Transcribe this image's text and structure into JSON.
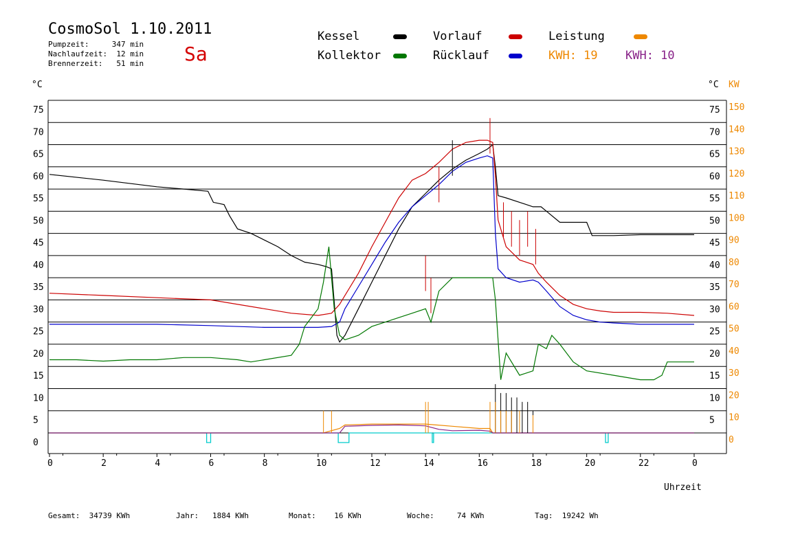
{
  "header": {
    "title": "CosmoSol 1.10.2011",
    "pumpzeit": "Pumpzeit:     347 min",
    "nachlaufzeit": "Nachlaufzeit:  12 min",
    "brennerzeit": "Brennerzeit:   51 min",
    "day": "Sa"
  },
  "legend": {
    "kessel": "Kessel",
    "kollektor": "Kollektor",
    "vorlauf": "Vorlauf",
    "ruecklauf": "Rücklauf",
    "leistung": "Leistung",
    "kwh1": "KWH: 19",
    "kwh2": "KWH: 10"
  },
  "axes": {
    "left_unit": "°C",
    "right_unit": "°C",
    "kw_unit": "KW",
    "xlabel": "Uhrzeit"
  },
  "footer": {
    "gesamt": "Gesamt:  34739 KWh",
    "jahr": "Jahr:   1884 KWh",
    "monat": "Monat:    16 KWh",
    "woche": "Woche:     74 KWh",
    "tag": "Tag:  19242 Wh"
  },
  "chart_data": {
    "type": "line",
    "x_ticks": [
      "0",
      "2",
      "4",
      "6",
      "8",
      "10",
      "12",
      "14",
      "16",
      "18",
      "20",
      "22",
      "0"
    ],
    "y_ticks_left": [
      "0",
      "5",
      "10",
      "15",
      "20",
      "25",
      "30",
      "35",
      "40",
      "45",
      "50",
      "55",
      "60",
      "65",
      "70",
      "75"
    ],
    "y_ticks_right": [
      "",
      "5",
      "10",
      "15",
      "20",
      "25",
      "30",
      "35",
      "40",
      "45",
      "50",
      "55",
      "60",
      "65",
      "70",
      "75"
    ],
    "y_ticks_kw": [
      "0",
      "10",
      "20",
      "30",
      "40",
      "50",
      "60",
      "70",
      "80",
      "90",
      "100",
      "110",
      "120",
      "130",
      "140",
      "150"
    ],
    "xlim": [
      0,
      24
    ],
    "ylim": [
      0,
      75
    ],
    "grid": true,
    "colors": {
      "kessel": "#000000",
      "kollektor": "#007700",
      "vorlauf": "#cc0000",
      "ruecklauf": "#0000cc",
      "leistung": "#ee8800",
      "kwh2": "#882288",
      "pump": "#00cccc"
    },
    "series": [
      {
        "name": "Kessel",
        "key": "kessel",
        "x": [
          0,
          2,
          4,
          5,
          5.9,
          6.1,
          6.5,
          6.7,
          7,
          7.5,
          8,
          8.5,
          9,
          9.5,
          10,
          10.3,
          10.5,
          10.7,
          10.8,
          11,
          11.5,
          12,
          12.5,
          13,
          13.5,
          14,
          14.5,
          15,
          15.5,
          16,
          16.3,
          16.4,
          16.5,
          16.6,
          16.7,
          17,
          17.5,
          18,
          18.3,
          18.5,
          19,
          19.5,
          20,
          20.2,
          21,
          22,
          23,
          24
        ],
        "y": [
          58.3,
          57,
          55.5,
          55,
          54.5,
          52,
          51.5,
          49,
          46,
          45,
          43.5,
          42,
          40,
          38.5,
          38,
          37.5,
          37,
          22,
          20.5,
          22,
          28,
          34,
          40,
          46,
          51,
          54,
          57,
          59.5,
          61.5,
          63,
          64,
          64.5,
          65,
          60,
          53.5,
          53,
          52,
          51,
          51,
          50,
          47.5,
          47.5,
          47.5,
          44.5,
          44.5,
          44.7,
          44.7,
          44.7
        ]
      },
      {
        "name": "Vorlauf",
        "key": "vorlauf",
        "x": [
          0,
          2,
          4,
          6,
          8,
          9,
          10,
          10.5,
          10.8,
          11,
          11.5,
          12,
          12.5,
          13,
          13.5,
          14,
          14.5,
          15,
          15.5,
          16,
          16.3,
          16.5,
          16.6,
          16.7,
          17,
          17.5,
          18,
          18.2,
          18.5,
          19,
          19.5,
          20,
          20.5,
          21,
          22,
          23,
          24
        ],
        "y": [
          31.5,
          31,
          30.5,
          30,
          28,
          27,
          26.5,
          27,
          29,
          31,
          36,
          42,
          47.5,
          53,
          57,
          58.5,
          61,
          64,
          65.5,
          66,
          66,
          65.5,
          58,
          48,
          42,
          39,
          38,
          36,
          34,
          31,
          29,
          28,
          27.5,
          27.2,
          27.2,
          27,
          26.5
        ]
      },
      {
        "name": "Rücklauf",
        "key": "ruecklauf",
        "x": [
          0,
          2,
          4,
          6,
          8,
          9,
          10,
          10.5,
          10.8,
          11,
          11.5,
          12,
          12.5,
          13,
          13.5,
          14,
          14.5,
          15,
          15.5,
          16,
          16.3,
          16.5,
          16.6,
          16.7,
          17,
          17.5,
          18,
          18.2,
          18.5,
          19,
          19.5,
          20,
          20.5,
          21,
          22,
          23,
          24
        ],
        "y": [
          24.5,
          24.5,
          24.5,
          24.2,
          23.8,
          23.8,
          23.8,
          24,
          25,
          28,
          33,
          38,
          43,
          47.5,
          51,
          53.5,
          56,
          59,
          61,
          62,
          62.5,
          62,
          45,
          37,
          35,
          34,
          34.5,
          34,
          32,
          28.5,
          26.5,
          25.5,
          25,
          24.8,
          24.5,
          24.5,
          24.5
        ]
      },
      {
        "name": "Kollektor",
        "key": "kollektor",
        "x": [
          0,
          1,
          2,
          3,
          4,
          5,
          6,
          7,
          7.5,
          8,
          9,
          9.3,
          9.5,
          10,
          10.2,
          10.4,
          10.6,
          10.8,
          11,
          11.5,
          12,
          12.5,
          13,
          13.5,
          14,
          14.2,
          14.5,
          15,
          15.5,
          16,
          16.3,
          16.5,
          16.6,
          16.8,
          17,
          17.5,
          18,
          18.2,
          18.5,
          18.7,
          19,
          19.5,
          20,
          21,
          22,
          22.5,
          22.8,
          23,
          24
        ],
        "y": [
          16.5,
          16.5,
          16.2,
          16.5,
          16.5,
          17,
          17,
          16.5,
          16,
          16.5,
          17.5,
          20,
          24,
          28,
          34,
          42,
          28,
          22,
          21,
          22,
          24,
          25,
          26,
          27,
          28,
          25,
          32,
          35,
          35,
          35,
          35,
          35,
          30,
          12,
          18,
          13,
          14,
          20,
          19,
          22,
          20,
          16,
          14,
          13,
          12,
          12,
          13,
          16,
          16
        ]
      },
      {
        "name": "Leistung",
        "key": "leistung",
        "x": [
          0,
          10.2,
          10.8,
          11,
          12,
          13,
          14,
          15,
          16,
          16.4,
          16.5,
          24
        ],
        "y": [
          0,
          0,
          1,
          1.8,
          2,
          2,
          2,
          1.5,
          1,
          1,
          0,
          0
        ]
      },
      {
        "name": "KWH: 10",
        "key": "kwh2",
        "x": [
          0,
          10.8,
          11,
          12,
          13,
          14,
          14.5,
          15,
          16,
          16.4,
          16.5,
          24
        ],
        "y": [
          0,
          0,
          1.5,
          1.7,
          1.8,
          1.6,
          0.8,
          0.5,
          0.6,
          0.4,
          0,
          0
        ]
      }
    ],
    "pump_pulses_hours": [
      [
        5.85,
        6.0
      ],
      [
        10.75,
        11.15
      ],
      [
        14.25,
        14.3
      ],
      [
        20.7,
        20.8
      ]
    ],
    "spikes": [
      {
        "key": "vorlauf",
        "x": [
          14,
          14.2,
          14.5,
          16.4,
          16.9,
          17.2,
          17.5,
          17.8,
          18.1
        ],
        "y": [
          40,
          35,
          60,
          71,
          52,
          50,
          48,
          50,
          46
        ]
      },
      {
        "key": "kessel",
        "x": [
          15,
          16.6,
          16.8,
          17,
          17.2,
          17.4,
          17.6,
          17.8,
          18
        ],
        "y": [
          66,
          11,
          9,
          9,
          8,
          8,
          7,
          7,
          5
        ]
      },
      {
        "key": "leistung",
        "x": [
          10.2,
          10.5,
          14,
          14.1,
          16.4,
          16.6,
          16.8,
          17,
          17.2,
          17.5,
          18
        ],
        "y": [
          5,
          5,
          7,
          7,
          7,
          7,
          5,
          5,
          5,
          5,
          4
        ]
      }
    ]
  }
}
